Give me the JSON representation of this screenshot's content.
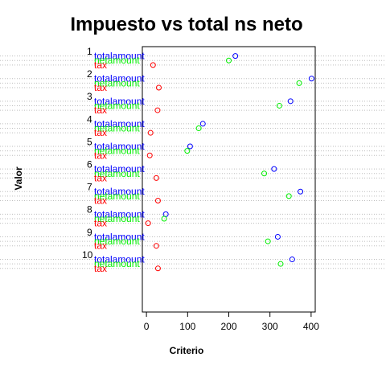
{
  "chart_data": {
    "type": "scatter",
    "subtype": "dotchart",
    "title": "Impuesto vs total ns neto",
    "xlabel": "Criterio",
    "ylabel": "Valor",
    "xlim": [
      -10,
      410
    ],
    "x_ticks": [
      0,
      100,
      200,
      300,
      400
    ],
    "grid": "dotted horizontal lines",
    "groups": [
      "1",
      "2",
      "3",
      "4",
      "5",
      "6",
      "7",
      "8",
      "9",
      "10"
    ],
    "series": [
      {
        "name": "totalamount",
        "color": "#0000ff",
        "values": [
          216,
          401,
          350,
          137,
          106,
          310,
          374,
          47,
          319,
          354
        ]
      },
      {
        "name": "netamount",
        "color": "#00ee00",
        "values": [
          200,
          371,
          323,
          127,
          99,
          286,
          346,
          43,
          295,
          326
        ]
      },
      {
        "name": "tax",
        "color": "#ff0000",
        "values": [
          16,
          30,
          27,
          10,
          8,
          24,
          28,
          4,
          24,
          28
        ]
      }
    ]
  }
}
